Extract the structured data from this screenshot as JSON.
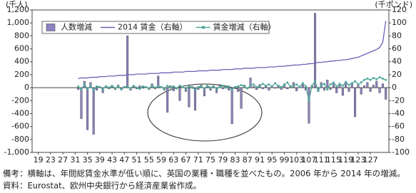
{
  "chart_data": {
    "type": "bar",
    "y_unit_label": "(千人)",
    "y2_unit_label": "(千ポンド)",
    "notes": [
      "備考：横軸は、年間総賃金水準が低い順に、英国の業種・職種を並べたもの。2006 年から 2014 年の増減。",
      "資料：Eurostat、欧州中央銀行から経済産業省作成。"
    ],
    "x": [
      32,
      33,
      34,
      35,
      36,
      37,
      38,
      39,
      40,
      41,
      42,
      43,
      44,
      45,
      46,
      47,
      48,
      49,
      50,
      51,
      52,
      53,
      54,
      55,
      56,
      57,
      58,
      59,
      60,
      61,
      62,
      63,
      64,
      65,
      66,
      67,
      68,
      69,
      70,
      71,
      72,
      73,
      74,
      75,
      76,
      77,
      78,
      79,
      80,
      81,
      82,
      83,
      84,
      85,
      86,
      87,
      88,
      89,
      90,
      91,
      92,
      93,
      94,
      95,
      96,
      97,
      98,
      99,
      100,
      101,
      102,
      103,
      104,
      105,
      106,
      107,
      108,
      109,
      110,
      111,
      112,
      113,
      114,
      115,
      116,
      117,
      118,
      119,
      120,
      121,
      122,
      123,
      124,
      125,
      126,
      127,
      128,
      129,
      130,
      131,
      132
    ],
    "xlim": [
      17,
      133
    ],
    "xticks": [
      19,
      23,
      27,
      31,
      35,
      39,
      43,
      47,
      51,
      55,
      59,
      63,
      67,
      71,
      75,
      79,
      83,
      87,
      91,
      95,
      99,
      103,
      107,
      111,
      115,
      119,
      123,
      127
    ],
    "ylim": [
      -1000,
      1200
    ],
    "yticks": [
      {
        "value": -1000,
        "label": "-1,000"
      },
      -800,
      -600,
      -400,
      -200,
      0,
      200,
      400,
      600,
      800,
      {
        "value": 1000,
        "label": "1,000"
      },
      {
        "value": 1200,
        "label": "1,200"
      }
    ],
    "y2lim": [
      -100,
      120
    ],
    "y2ticks": [
      -100,
      -80,
      -60,
      -40,
      -20,
      0,
      20,
      40,
      60,
      80,
      100,
      120
    ],
    "grid": false,
    "legend": "top-left",
    "series": [
      {
        "name": "人数増減",
        "type": "bar",
        "axis": "y",
        "color": "#8c84c0",
        "values": [
          -30,
          -480,
          100,
          -650,
          80,
          -720,
          -40,
          20,
          -80,
          30,
          -20,
          10,
          -30,
          40,
          -10,
          20,
          800,
          -40,
          10,
          -20,
          30,
          -10,
          20,
          -30,
          60,
          -20,
          180,
          20,
          -40,
          -380,
          30,
          -50,
          -20,
          -200,
          10,
          -60,
          -300,
          20,
          -350,
          -30,
          40,
          -130,
          20,
          -40,
          30,
          -80,
          50,
          -20,
          30,
          -40,
          -560,
          20,
          -60,
          -320,
          40,
          -20,
          150,
          20,
          -30,
          50,
          -20,
          30,
          -40,
          20,
          -10,
          40,
          -30,
          60,
          -20,
          30,
          80,
          -50,
          20,
          60,
          -40,
          -550,
          30,
          1150,
          -60,
          80,
          -40,
          120,
          -30,
          60,
          -80,
          40,
          -120,
          90,
          -60,
          70,
          -450,
          50,
          -100,
          30,
          80,
          -60,
          40,
          100,
          -80,
          60,
          -180
        ]
      },
      {
        "name": "2014 賃金（右軸）",
        "type": "line",
        "axis": "y2",
        "color": "#6a62b4",
        "values": [
          14,
          15,
          15,
          15,
          16,
          16,
          16,
          17,
          17,
          17,
          18,
          18,
          18,
          19,
          19,
          19,
          20,
          20,
          20,
          21,
          21,
          21,
          21,
          22,
          22,
          22,
          22,
          23,
          23,
          23,
          23,
          24,
          24,
          24,
          24,
          25,
          25,
          25,
          25,
          26,
          26,
          26,
          26,
          27,
          27,
          27,
          27,
          28,
          28,
          28,
          28,
          29,
          29,
          29,
          30,
          30,
          30,
          30,
          31,
          31,
          31,
          31,
          32,
          32,
          32,
          33,
          33,
          33,
          34,
          34,
          35,
          35,
          35,
          36,
          36,
          37,
          37,
          38,
          39,
          39,
          40,
          40,
          41,
          41,
          42,
          42,
          43,
          43,
          44,
          45,
          46,
          47,
          49,
          51,
          53,
          55,
          57,
          59,
          62,
          70,
          103
        ]
      },
      {
        "name": "賃金増減（右軸）",
        "type": "line",
        "marker": "square",
        "axis": "y2",
        "color": "#4fa89b",
        "values": [
          2,
          -3,
          5,
          -2,
          3,
          -4,
          2,
          1,
          -2,
          2,
          0,
          3,
          -1,
          2,
          -3,
          1,
          2,
          -1,
          3,
          0,
          -2,
          2,
          1,
          -1,
          3,
          0,
          2,
          1,
          -2,
          3,
          0,
          2,
          -1,
          3,
          1,
          -2,
          2,
          0,
          -3,
          1,
          2,
          -1,
          3,
          0,
          2,
          -2,
          1,
          3,
          0,
          2,
          -3,
          1,
          2,
          4,
          2,
          -1,
          3,
          5,
          1,
          2,
          6,
          3,
          5,
          2,
          7,
          3,
          1,
          4,
          8,
          2,
          3,
          5,
          1,
          7,
          2,
          -20,
          3,
          10,
          -5,
          4,
          6,
          -3,
          5,
          8,
          2,
          6,
          3,
          9,
          4,
          7,
          10,
          5,
          8,
          12,
          14,
          12,
          15,
          13,
          16,
          14,
          12
        ]
      }
    ]
  }
}
